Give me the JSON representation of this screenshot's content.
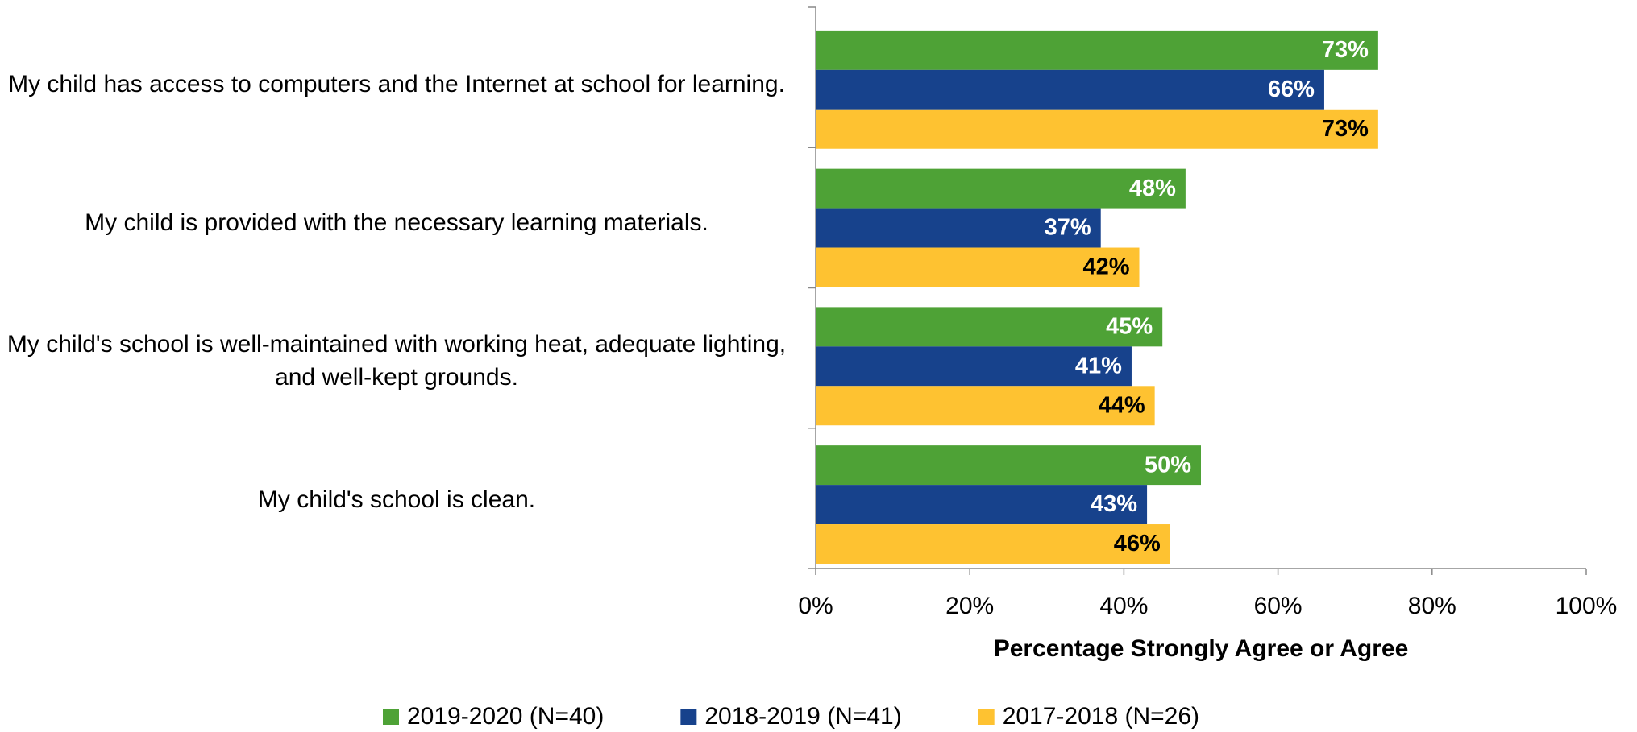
{
  "chart_data": {
    "type": "hbar",
    "categories": [
      "My child has access to computers and the Internet at school for learning.",
      "My child is provided with the necessary learning materials.",
      "My child's school is well-maintained with working heat, adequate lighting, and well-kept grounds.",
      "My child's school is clean."
    ],
    "x_label": "Percentage Strongly Agree or Agree",
    "xlim": [
      0,
      100
    ],
    "xticks": [
      {
        "value": 0,
        "label": "0%"
      },
      {
        "value": 20,
        "label": "20%"
      },
      {
        "value": 40,
        "label": "40%"
      },
      {
        "value": 60,
        "label": "60%"
      },
      {
        "value": 80,
        "label": "80%"
      },
      {
        "value": 100,
        "label": "100%"
      }
    ],
    "series": [
      {
        "name": "2019-2020 (N=40)",
        "color": "#4ea236",
        "label_color": "#ffffff",
        "values": [
          73,
          48,
          45,
          50
        ],
        "value_labels": [
          "73%",
          "48%",
          "45%",
          "50%"
        ]
      },
      {
        "name": "2018-2019 (N=41)",
        "color": "#17428c",
        "label_color": "#ffffff",
        "values": [
          66,
          37,
          41,
          43
        ],
        "value_labels": [
          "66%",
          "37%",
          "41%",
          "43%"
        ]
      },
      {
        "name": "2017-2018 (N=26)",
        "color": "#fec231",
        "label_color": "#000000",
        "values": [
          73,
          42,
          44,
          46
        ],
        "value_labels": [
          "73%",
          "42%",
          "44%",
          "46%"
        ]
      }
    ],
    "legend": "bottom"
  }
}
